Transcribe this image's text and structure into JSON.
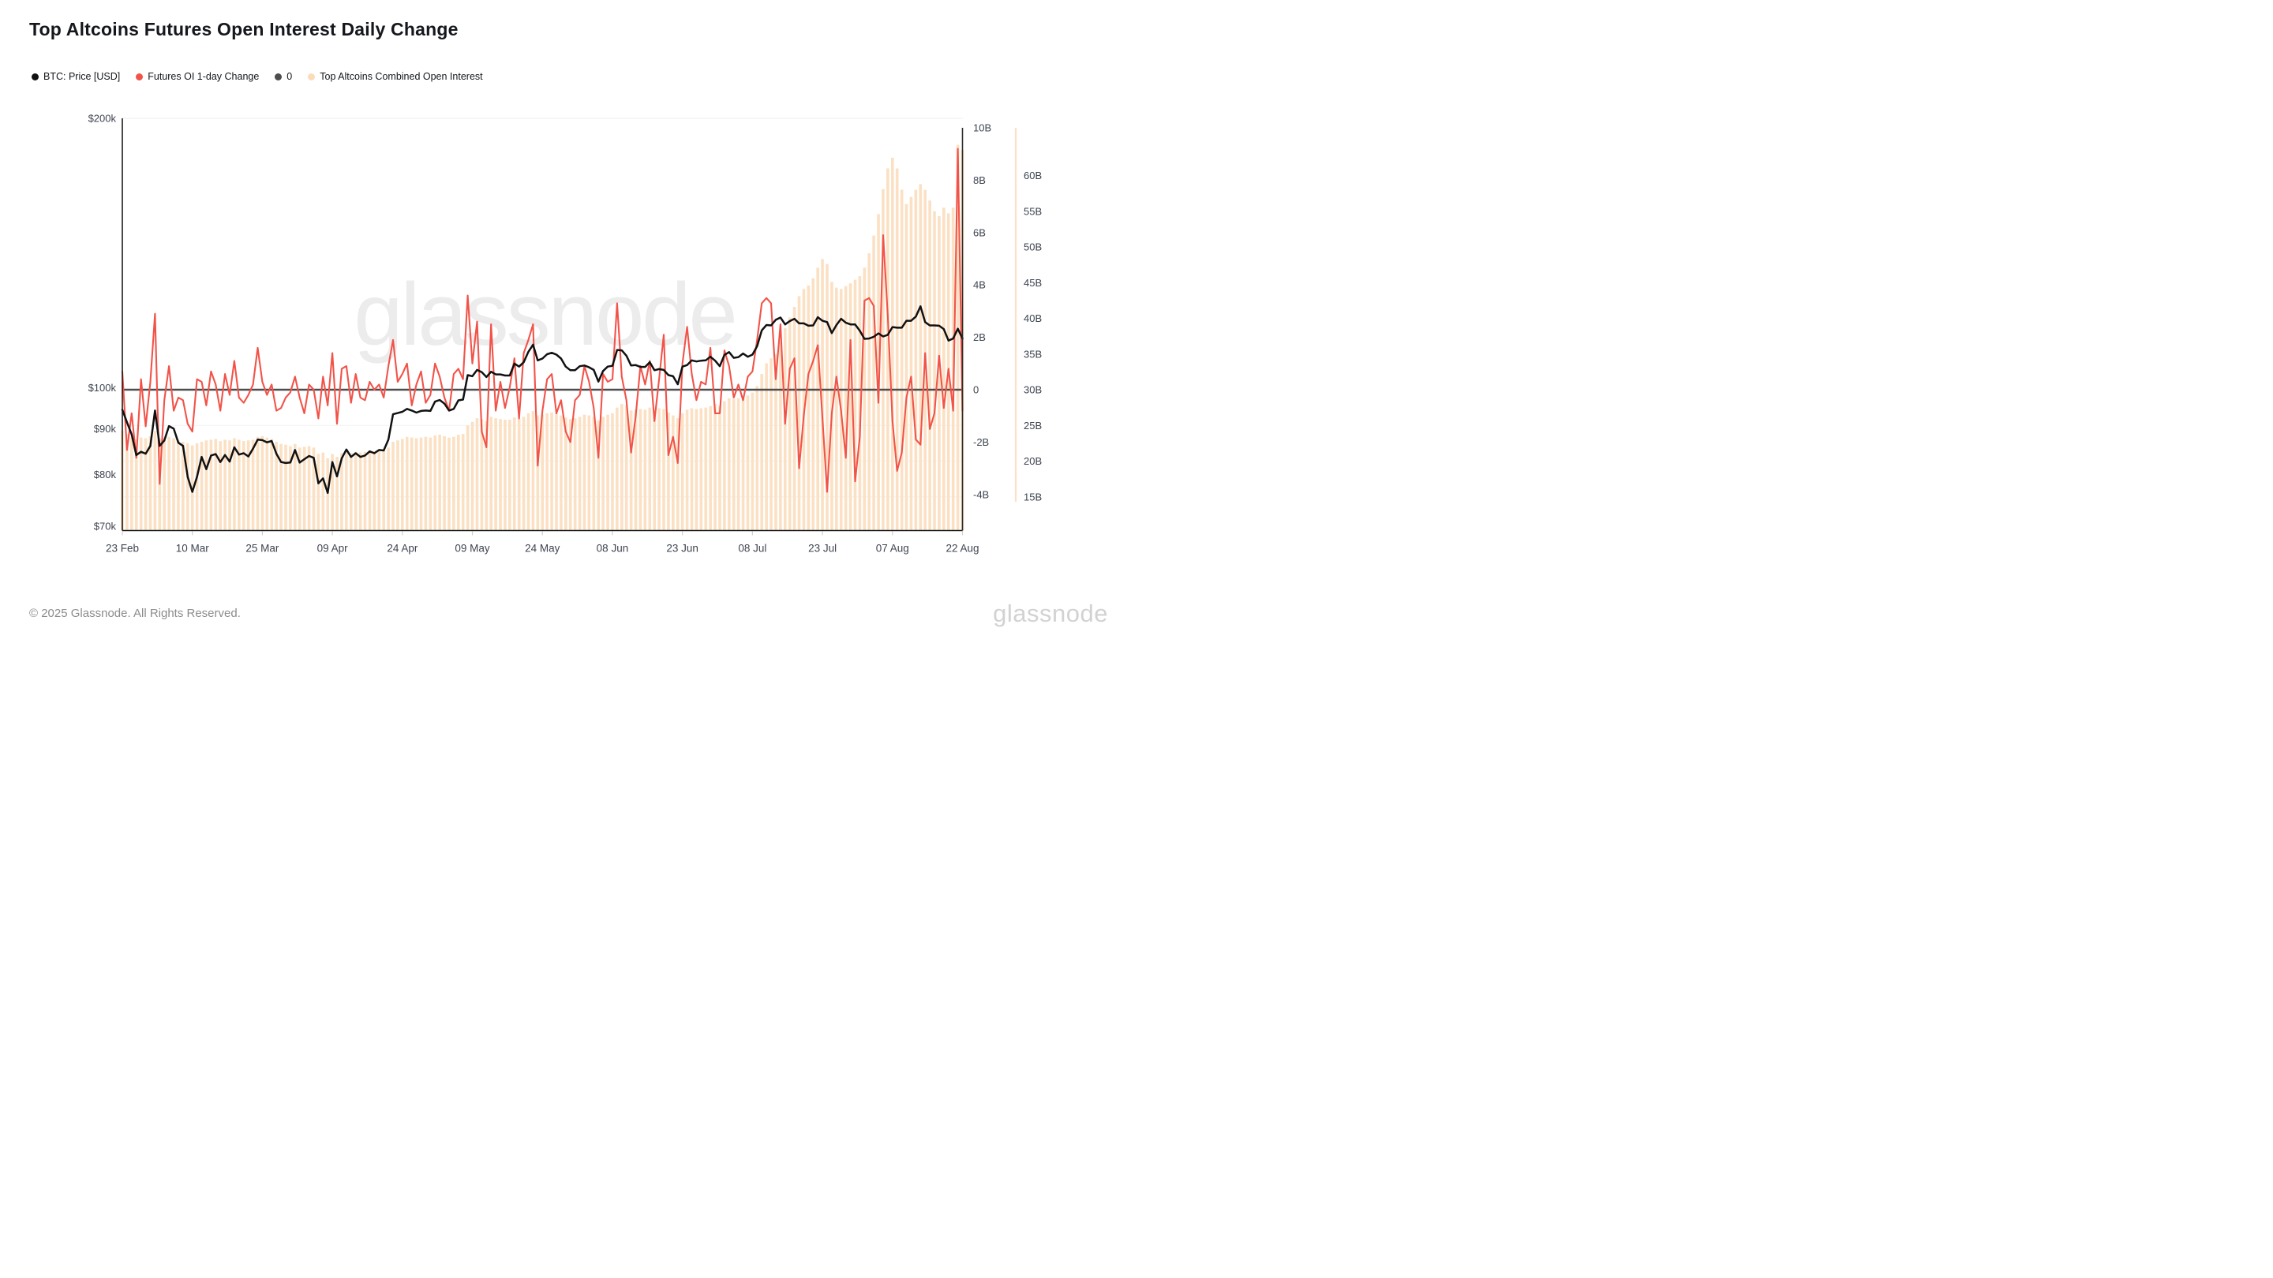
{
  "page": {
    "title": "Top Altcoins Futures Open Interest Daily Change",
    "footer_copyright": "© 2025 Glassnode. All Rights Reserved.",
    "footer_logo": "glassnode",
    "watermark": "glassnode"
  },
  "legend": {
    "items": [
      {
        "label": "BTC: Price [USD]",
        "color": "#111111"
      },
      {
        "label": "Futures OI 1-day Change",
        "color": "#f25349"
      },
      {
        "label": "0",
        "color": "#4d4d4d"
      },
      {
        "label": "Top Altcoins Combined Open Interest",
        "color": "#fbdcb8"
      }
    ]
  },
  "chart_data": {
    "type": "mixed",
    "title": "Top Altcoins Futures Open Interest Daily Change",
    "x": {
      "start_label": "23 Feb",
      "end_label": "22 Aug",
      "tick_labels": [
        "23 Feb",
        "10 Mar",
        "25 Mar",
        "09 Apr",
        "24 Apr",
        "09 May",
        "24 May",
        "08 Jun",
        "23 Jun",
        "08 Jul",
        "23 Jul",
        "07 Aug",
        "22 Aug"
      ],
      "tick_day_indices": [
        0,
        15,
        30,
        45,
        60,
        75,
        90,
        105,
        120,
        135,
        150,
        165,
        180
      ],
      "days_total": 180
    },
    "axes": {
      "price": {
        "side": "left",
        "scale": "log",
        "unit": "USD",
        "tick_labels": [
          "$200k",
          "$100k",
          "$90k",
          "$80k",
          "$70k"
        ],
        "tick_values": [
          200,
          100,
          90,
          80,
          70
        ],
        "range_top": 200,
        "range_bottom": 70
      },
      "oi_change": {
        "side": "right",
        "scale": "linear",
        "unit": "USD billions",
        "tick_labels": [
          "10B",
          "8B",
          "6B",
          "4B",
          "2B",
          "0",
          "-2B",
          "-4B"
        ],
        "tick_values": [
          10,
          8,
          6,
          4,
          2,
          0,
          -2,
          -4
        ],
        "zero_line": 0
      },
      "combined_oi": {
        "side": "far-right",
        "scale": "linear",
        "unit": "USD billions",
        "tick_labels": [
          "60B",
          "55B",
          "50B",
          "45B",
          "40B",
          "35B",
          "30B",
          "25B",
          "20B",
          "15B"
        ],
        "tick_values": [
          60,
          55,
          50,
          45,
          40,
          35,
          30,
          25,
          20,
          15
        ]
      }
    },
    "grid": {
      "below_zero_oi_lines": [
        25,
        20,
        15
      ],
      "top_border": true
    },
    "series": [
      {
        "name": "BTC: Price [USD]",
        "type": "line",
        "axis": "price",
        "color": "#111111",
        "unit": "k USD",
        "values": [
          94.5,
          91.5,
          88.7,
          84.1,
          84.8,
          84.4,
          86.1,
          94.3,
          86.1,
          87.3,
          90.6,
          90.0,
          86.8,
          86.1,
          79.5,
          76.5,
          79.5,
          83.7,
          81.1,
          84.0,
          84.3,
          82.6,
          84.1,
          82.7,
          85.8,
          84.2,
          84.5,
          83.8,
          85.5,
          87.5,
          87.4,
          86.9,
          87.2,
          84.4,
          82.6,
          82.4,
          82.5,
          85.2,
          82.5,
          83.2,
          83.9,
          83.5,
          78.2,
          79.2,
          76.3,
          82.6,
          79.6,
          83.4,
          85.3,
          83.7,
          84.5,
          83.7,
          84.0,
          84.9,
          84.5,
          85.2,
          85.1,
          87.5,
          93.4,
          93.7,
          94.0,
          94.7,
          94.3,
          93.8,
          94.2,
          94.3,
          94.2,
          96.5,
          96.9,
          96.0,
          94.3,
          94.7,
          96.8,
          97.0,
          103.3,
          103.0,
          104.7,
          104.1,
          102.8,
          104.2,
          103.5,
          103.5,
          103.2,
          103.2,
          106.4,
          105.6,
          106.8,
          109.7,
          111.7,
          107.3,
          107.8,
          109.0,
          109.4,
          108.9,
          107.8,
          105.6,
          104.6,
          104.6,
          105.7,
          105.9,
          105.4,
          104.7,
          101.6,
          104.4,
          105.6,
          105.8,
          110.2,
          110.1,
          108.6,
          105.9,
          106.0,
          105.5,
          105.5,
          106.8,
          104.6,
          104.9,
          104.7,
          103.3,
          103.0,
          100.9,
          105.6,
          106.0,
          107.3,
          107.0,
          107.2,
          107.3,
          108.3,
          107.2,
          105.7,
          108.8,
          109.6,
          108.0,
          108.2,
          109.2,
          108.3,
          108.9,
          111.3,
          115.9,
          117.5,
          117.4,
          119.1,
          119.8,
          117.7,
          118.7,
          119.4,
          118.0,
          118.0,
          117.3,
          117.4,
          119.9,
          118.8,
          118.4,
          115.1,
          117.5,
          119.4,
          118.2,
          117.7,
          117.7,
          115.8,
          113.4,
          113.5,
          114.0,
          115.0,
          114.1,
          114.6,
          116.9,
          116.7,
          116.7,
          118.8,
          118.8,
          120.1,
          123.3,
          118.4,
          117.4,
          117.4,
          117.3,
          116.3,
          112.9,
          113.5,
          116.4,
          113.5
        ]
      },
      {
        "name": "Futures OI 1-day Change",
        "type": "line",
        "axis": "oi_change",
        "color": "#f25349",
        "unit": "B USD",
        "values": [
          0.7,
          -2.3,
          -0.9,
          -2.6,
          0.4,
          -1.4,
          0.3,
          2.9,
          -3.6,
          -0.4,
          0.9,
          -0.8,
          -0.3,
          -0.4,
          -1.3,
          -1.6,
          0.4,
          0.3,
          -0.6,
          0.7,
          0.2,
          -0.8,
          0.6,
          -0.2,
          1.1,
          -0.3,
          -0.5,
          -0.2,
          0.2,
          1.6,
          0.3,
          -0.2,
          0.2,
          -0.8,
          -0.7,
          -0.3,
          -0.1,
          0.5,
          -0.3,
          -0.9,
          0.2,
          0.0,
          -1.1,
          0.5,
          -0.6,
          1.4,
          -1.3,
          0.8,
          0.9,
          -0.5,
          0.6,
          -0.3,
          -0.4,
          0.3,
          0.0,
          0.2,
          -0.3,
          0.9,
          1.9,
          0.3,
          0.6,
          1.0,
          -0.6,
          0.2,
          0.7,
          -0.5,
          -0.2,
          1.0,
          0.5,
          -0.3,
          -0.8,
          0.6,
          0.8,
          0.4,
          3.6,
          1.0,
          2.6,
          -1.6,
          -2.2,
          2.5,
          -0.8,
          0.3,
          -0.7,
          0.1,
          1.2,
          -1.1,
          1.4,
          1.9,
          2.5,
          -2.9,
          -0.8,
          0.4,
          0.6,
          -0.9,
          -0.4,
          -1.6,
          -2.0,
          -0.4,
          -0.2,
          0.9,
          0.3,
          -0.7,
          -2.6,
          0.6,
          0.3,
          0.4,
          3.3,
          0.5,
          -0.4,
          -2.4,
          -1.0,
          0.9,
          0.2,
          1.1,
          -1.2,
          0.4,
          2.1,
          -2.5,
          -1.8,
          -2.8,
          1.0,
          2.4,
          0.6,
          -0.4,
          0.3,
          0.2,
          1.6,
          -0.9,
          -0.9,
          1.5,
          0.9,
          -0.3,
          0.2,
          -0.4,
          0.5,
          0.7,
          1.9,
          3.3,
          3.5,
          3.3,
          0.4,
          2.5,
          -1.3,
          0.8,
          1.2,
          -3.0,
          -1.0,
          0.6,
          1.1,
          1.7,
          -1.1,
          -3.9,
          -0.9,
          0.5,
          -0.8,
          -2.6,
          1.9,
          -3.5,
          -1.8,
          3.4,
          3.5,
          3.2,
          -0.5,
          5.9,
          2.8,
          -1.2,
          -3.1,
          -2.4,
          -0.3,
          0.5,
          -1.9,
          -2.1,
          1.4,
          -1.5,
          -0.9,
          1.3,
          -0.7,
          0.8,
          -0.8,
          9.2,
          -0.8
        ]
      },
      {
        "name": "0",
        "type": "reference-line",
        "axis": "oi_change",
        "color": "#4d4d4d",
        "value": 0
      },
      {
        "name": "Top Altcoins Combined Open Interest",
        "type": "bar",
        "axis": "combined_oi",
        "color": "#fbe0c3",
        "unit": "B USD",
        "values": [
          24.3,
          23.8,
          23.3,
          23.0,
          23.3,
          23.2,
          23.5,
          24.2,
          23.1,
          23.2,
          23.4,
          23.2,
          22.9,
          22.7,
          22.5,
          22.2,
          22.5,
          22.7,
          22.9,
          23.0,
          23.1,
          22.8,
          23.0,
          22.9,
          23.2,
          23.0,
          22.8,
          22.9,
          23.0,
          23.4,
          23.5,
          23.3,
          23.1,
          22.7,
          22.4,
          22.3,
          22.1,
          22.4,
          21.9,
          22.0,
          22.1,
          21.9,
          21.0,
          21.2,
          20.4,
          21.0,
          20.6,
          21.1,
          21.3,
          21.1,
          21.3,
          21.2,
          21.3,
          21.5,
          21.4,
          21.5,
          21.5,
          21.9,
          22.7,
          22.9,
          23.1,
          23.4,
          23.3,
          23.2,
          23.3,
          23.4,
          23.3,
          23.6,
          23.7,
          23.5,
          23.3,
          23.4,
          23.7,
          23.8,
          25.0,
          25.5,
          26.0,
          25.9,
          25.6,
          26.2,
          26.0,
          25.9,
          25.8,
          25.8,
          26.1,
          25.9,
          26.2,
          26.7,
          27.0,
          26.4,
          26.5,
          26.7,
          26.8,
          26.7,
          26.4,
          26.1,
          25.9,
          26.0,
          26.2,
          26.5,
          26.4,
          26.2,
          25.7,
          26.2,
          26.5,
          26.7,
          27.5,
          28.0,
          27.8,
          27.1,
          27.2,
          27.3,
          27.2,
          27.5,
          27.2,
          27.4,
          27.3,
          26.8,
          26.4,
          26.0,
          26.7,
          27.2,
          27.4,
          27.3,
          27.4,
          27.5,
          27.7,
          28.0,
          27.7,
          28.4,
          28.8,
          28.7,
          28.8,
          29.1,
          29.2,
          29.6,
          30.5,
          32.2,
          33.7,
          34.4,
          35.0,
          36.7,
          38.6,
          40.1,
          41.6,
          43.1,
          44.1,
          44.6,
          45.6,
          47.1,
          48.3,
          47.6,
          45.1,
          44.3,
          44.1,
          44.5,
          44.9,
          45.4,
          45.9,
          47.1,
          49.1,
          51.6,
          54.6,
          58.1,
          61.0,
          62.5,
          61.0,
          58.0,
          56.0,
          57.0,
          58.0,
          58.8,
          58.0,
          56.5,
          55.0,
          54.3,
          55.5,
          54.7,
          55.5,
          64.3,
          63.6
        ]
      }
    ]
  },
  "colors": {
    "background": "#ffffff",
    "axis_text": "#3e4450",
    "axis_line": "#1a1a1a",
    "grid_line": "#f2f2f2",
    "zero_line": "#4d4d4d",
    "bar": "#fbe0c3",
    "far_right_axis_line": "#fbe0c3",
    "watermark": "#ececec"
  }
}
